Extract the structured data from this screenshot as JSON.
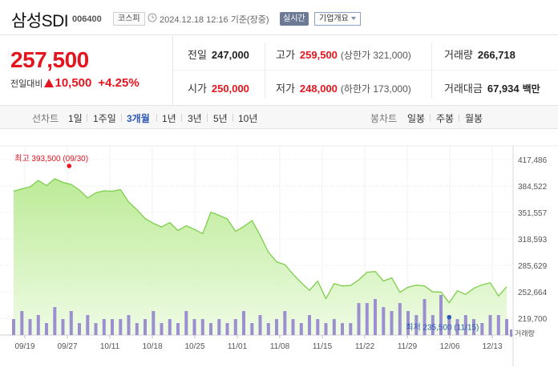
{
  "header": {
    "title": "삼성SDI",
    "code": "006400",
    "market": "코스피",
    "as_of": "2024.12.18 12:16 기준(장중)",
    "realtime_badge": "실시간",
    "company_info_button": "기업개요"
  },
  "price": {
    "current": "257,500",
    "change_label": "전일대비",
    "change_amount": "10,500",
    "change_percent": "+4.25%",
    "direction": "up"
  },
  "stats": {
    "prev_close": {
      "label": "전일",
      "value": "247,000"
    },
    "high": {
      "label": "고가",
      "value": "259,500",
      "sub": "(상한가 321,000)"
    },
    "volume": {
      "label": "거래량",
      "value": "266,718"
    },
    "open": {
      "label": "시가",
      "value": "250,000"
    },
    "low": {
      "label": "저가",
      "value": "248,000",
      "sub": "(하한가 173,000)"
    },
    "amount": {
      "label": "거래대금",
      "value": "67,934",
      "unit": "백만"
    }
  },
  "period_bar": {
    "line_chart_label": "선차트",
    "line_periods": [
      "1일",
      "1주일",
      "3개월",
      "1년",
      "3년",
      "5년",
      "10년"
    ],
    "active_period": "3개월",
    "candle_chart_label": "봉차트",
    "candle_periods": [
      "일봉",
      "주봉",
      "월봉"
    ]
  },
  "colors": {
    "up_red": "#e4151e",
    "line_green": "#7dcf4a",
    "fill_green": "#c9f0a9",
    "volume_purple": "#9b8fd0",
    "active_blue": "#2f5ab5",
    "low_marker": "#2f5ab5"
  },
  "chart_data": {
    "type": "area",
    "y_ticks": [
      "417,486",
      "384,522",
      "351,557",
      "318,593",
      "285,629",
      "252,664",
      "219,700"
    ],
    "ylim": [
      219700,
      417486
    ],
    "x_ticks": [
      "09/19",
      "09/27",
      "10/11",
      "10/18",
      "10/25",
      "11/01",
      "11/08",
      "11/15",
      "11/22",
      "11/29",
      "12/06",
      "12/13"
    ],
    "high_annotation": "최고 393,500 (09/30)",
    "low_annotation": "최저 235,500 (11/15)",
    "volume_legend": "거래량",
    "grid": true,
    "legend": "top-right",
    "series": [
      {
        "values": [
          378000,
          381000,
          383500,
          391500,
          385000,
          393500,
          389000,
          386500,
          379500,
          369500,
          376000,
          378500,
          378000,
          380000,
          364500,
          355000,
          344000,
          338000,
          333500,
          339000,
          329000,
          335000,
          330500,
          325000,
          352000,
          348000,
          343500,
          328000,
          334000,
          341500,
          323000,
          302000,
          290000,
          286500,
          274500,
          264000,
          254500,
          266000,
          244000,
          263000,
          260000,
          260500,
          267500,
          277000,
          278000,
          266000,
          270000,
          252000,
          258500,
          261000,
          260000,
          252500,
          252500,
          239000,
          254000,
          249500,
          257000,
          261500,
          264000,
          247500,
          259000
        ],
        "volume": [
          0.4,
          0.6,
          0.4,
          0.5,
          0.3,
          0.7,
          0.4,
          0.6,
          0.3,
          0.5,
          0.3,
          0.4,
          0.4,
          0.4,
          0.5,
          0.3,
          0.4,
          0.6,
          0.3,
          0.4,
          0.3,
          0.6,
          0.4,
          0.4,
          0.3,
          0.4,
          0.3,
          0.4,
          0.6,
          0.3,
          0.5,
          0.3,
          0.4,
          0.6,
          0.4,
          0.3,
          0.5,
          0.4,
          0.3,
          0.4,
          0.3,
          0.3,
          0.8,
          0.8,
          0.9,
          0.7,
          0.6,
          0.8,
          0.6,
          0.5,
          0.9,
          0.5,
          1.0,
          0.5,
          0.4,
          0.5,
          0.4,
          0.3,
          0.5,
          0.5,
          0.4
        ]
      }
    ]
  }
}
